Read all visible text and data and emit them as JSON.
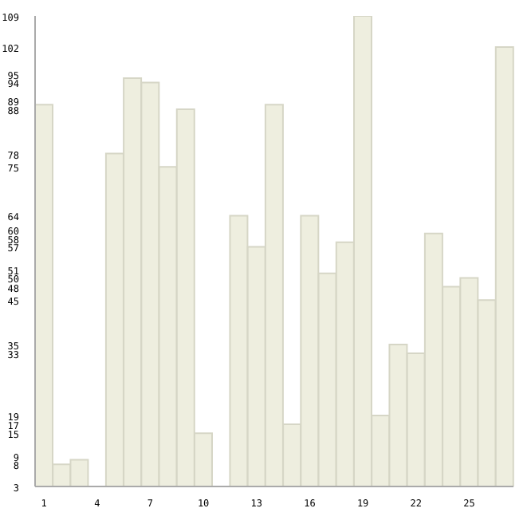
{
  "chart_data": {
    "type": "bar",
    "categories": [
      "1",
      null,
      null,
      "4",
      null,
      null,
      "7",
      null,
      null,
      "10",
      null,
      null,
      "13",
      null,
      null,
      "16",
      null,
      null,
      "19",
      null,
      null,
      "22",
      null,
      null,
      "25",
      null,
      null
    ],
    "values": [
      89,
      8,
      9,
      3,
      78,
      95,
      94,
      75,
      88,
      15,
      3,
      64,
      57,
      89,
      17,
      64,
      51,
      58,
      109,
      19,
      35,
      33,
      60,
      48,
      50,
      45,
      102
    ],
    "color": "#eeeedf",
    "ylim": [
      3,
      109
    ],
    "yticks": [
      3,
      8,
      9,
      15,
      17,
      19,
      33,
      35,
      45,
      48,
      50,
      51,
      57,
      58,
      60,
      64,
      75,
      78,
      88,
      89,
      94,
      95,
      102,
      109
    ],
    "grid": false
  }
}
